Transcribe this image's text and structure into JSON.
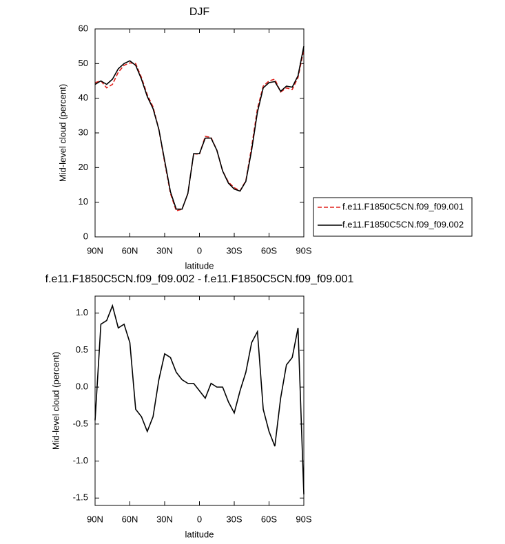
{
  "chart_data": [
    {
      "type": "line",
      "title": "DJF",
      "xlabel": "latitude",
      "ylabel": "Mid-level cloud (percent)",
      "x": [
        90,
        85,
        80,
        75,
        70,
        65,
        60,
        55,
        50,
        45,
        40,
        35,
        30,
        25,
        20,
        15,
        10,
        5,
        0,
        -5,
        -10,
        -15,
        -20,
        -25,
        -30,
        -35,
        -40,
        -45,
        -50,
        -55,
        -60,
        -65,
        -70,
        -75,
        -80,
        -85,
        -90
      ],
      "xlim": [
        90,
        -90
      ],
      "xticks": [
        {
          "value": 90,
          "label": "90N"
        },
        {
          "value": 60,
          "label": "60N"
        },
        {
          "value": 30,
          "label": "30N"
        },
        0,
        {
          "value": -30,
          "label": "30S"
        },
        {
          "value": -60,
          "label": "60S"
        },
        {
          "value": -90,
          "label": "90S"
        }
      ],
      "ylim": [
        0,
        60
      ],
      "yticks": [
        0,
        10,
        20,
        30,
        40,
        50,
        60
      ],
      "legend": "right",
      "series": [
        {
          "name": "f.e11.F1850C5CN.f09_f09.001",
          "color": "#e0201b",
          "linestyle": "dashed",
          "values": [
            44.5,
            45,
            43,
            44,
            47.5,
            49.5,
            50.2,
            50,
            46,
            41,
            37.5,
            31,
            21.5,
            12.5,
            7.5,
            8,
            12.5,
            24,
            23.8,
            29,
            28.7,
            25,
            19,
            15.8,
            14.2,
            13.3,
            16.2,
            26,
            37,
            43.5,
            45,
            45.5,
            41.8,
            43,
            42.5,
            46,
            54
          ]
        },
        {
          "name": "f.e11.F1850C5CN.f09_f09.002",
          "color": "#000000",
          "linestyle": "solid",
          "values": [
            44,
            45,
            44,
            45.5,
            48.5,
            50,
            50.8,
            49.5,
            45.5,
            40.5,
            37,
            31,
            22,
            13,
            8,
            8,
            12.5,
            24,
            24,
            28.5,
            28.5,
            25,
            19,
            15.5,
            13.8,
            13.2,
            16,
            25,
            36,
            43,
            44.5,
            44.8,
            42,
            43.5,
            43.2,
            46.5,
            55
          ]
        }
      ]
    },
    {
      "type": "line",
      "title": "f.e11.F1850C5CN.f09_f09.002 - f.e11.F1850C5CN.f09_f09.001",
      "xlabel": "latitude",
      "ylabel": "Mid-level cloud (percent)",
      "x": [
        90,
        85,
        80,
        75,
        70,
        65,
        60,
        55,
        50,
        45,
        40,
        35,
        30,
        25,
        20,
        15,
        10,
        5,
        0,
        -5,
        -10,
        -15,
        -20,
        -25,
        -30,
        -35,
        -40,
        -45,
        -50,
        -55,
        -60,
        -65,
        -70,
        -75,
        -80,
        -85,
        -90
      ],
      "xlim": [
        90,
        -90
      ],
      "xticks": [
        {
          "value": 90,
          "label": "90N"
        },
        {
          "value": 60,
          "label": "60N"
        },
        {
          "value": 30,
          "label": "30N"
        },
        0,
        {
          "value": -30,
          "label": "30S"
        },
        {
          "value": -60,
          "label": "60S"
        },
        {
          "value": -90,
          "label": "90S"
        }
      ],
      "ylim": [
        -1.6,
        1.23
      ],
      "yticks": [
        {
          "value": -1.5,
          "label": "-1.5"
        },
        {
          "value": -1,
          "label": "-1.0"
        },
        -0.5,
        {
          "value": 0,
          "label": "0.0"
        },
        0.5,
        {
          "value": 1,
          "label": "1.0"
        }
      ],
      "color": "#000000",
      "values": [
        -0.45,
        0.85,
        0.9,
        1.1,
        0.8,
        0.85,
        0.6,
        -0.3,
        -0.4,
        -0.6,
        -0.4,
        0.1,
        0.45,
        0.4,
        0.2,
        0.1,
        0.05,
        0.05,
        -0.05,
        -0.15,
        0.05,
        0,
        0,
        -0.2,
        -0.35,
        -0.05,
        0.2,
        0.6,
        0.75,
        -0.3,
        -0.6,
        -0.8,
        -0.15,
        0.3,
        0.4,
        0.8,
        -1.45
      ]
    }
  ]
}
